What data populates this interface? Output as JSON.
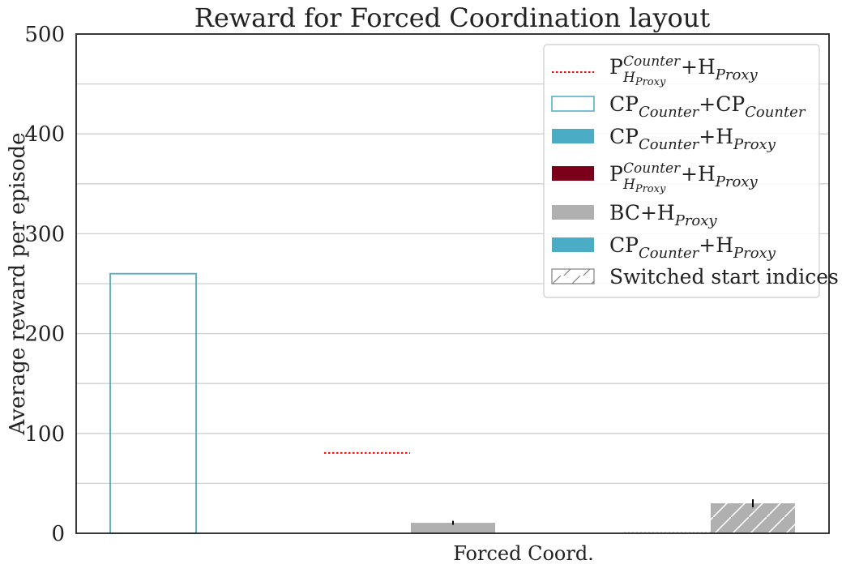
{
  "chart_data": {
    "type": "bar",
    "title": "Reward for Forced Coordination layout",
    "xlabel": "",
    "ylabel": "Average reward per episode",
    "ylim": [
      0,
      500
    ],
    "yticks": [
      0,
      100,
      200,
      300,
      400,
      500
    ],
    "ytick_labels": [
      "0",
      "100",
      "200",
      "300",
      "400",
      "500"
    ],
    "grid": true,
    "categories": [
      "Forced Coord."
    ],
    "legend_position": "top-right",
    "reference_line": {
      "series": "P_Counter_HProxy_line",
      "value": 80.5
    },
    "bars": [
      {
        "series": "CP_CP",
        "value": 260,
        "error": null
      },
      {
        "series": "BC_HProxy",
        "value": 10.5,
        "error": 2
      },
      {
        "series": "BC_HProxy_switched",
        "value": 30,
        "error": 4
      }
    ]
  },
  "legend": [
    {
      "key": "P_Counter_HProxy_line",
      "base": "P",
      "sup": "Counter",
      "sub": "H",
      "subsub": "Proxy",
      "rest": "+H",
      "rest_sub": "Proxy",
      "style": "dotted",
      "color": "#ff0000"
    },
    {
      "key": "CP_CP",
      "base": "CP",
      "sub": "Counter",
      "rest": "+CP",
      "rest_sub": "Counter",
      "style": "outline",
      "color": "#4aacc5"
    },
    {
      "key": "CP_HProxy",
      "base": "CP",
      "sub": "Counter",
      "rest": "+H",
      "rest_sub": "Proxy",
      "style": "solid",
      "color": "#4aacc5"
    },
    {
      "key": "P_Counter_HProxy",
      "base": "P",
      "sup": "Counter",
      "sub": "H",
      "subsub": "Proxy",
      "rest": "+H",
      "rest_sub": "Proxy",
      "style": "solid",
      "color": "#7b0019"
    },
    {
      "key": "BC_HProxy",
      "base": "BC",
      "rest": "+H",
      "rest_sub": "Proxy",
      "style": "solid",
      "color": "#b0b0b0"
    },
    {
      "key": "CP_HProxy_2",
      "base": "CP",
      "sub": "Counter",
      "rest": "+H",
      "rest_sub": "Proxy",
      "style": "solid",
      "color": "#4aacc5"
    },
    {
      "key": "switched",
      "label": "Switched start indices",
      "style": "hatch",
      "color": "#808080"
    }
  ],
  "colors": {
    "axis": "#222222",
    "grid": "#cfcfcf",
    "bar_gray": "#b0b0b0",
    "teal": "#4aacc5",
    "red_dotted": "#ff0000",
    "error": "#000000"
  }
}
